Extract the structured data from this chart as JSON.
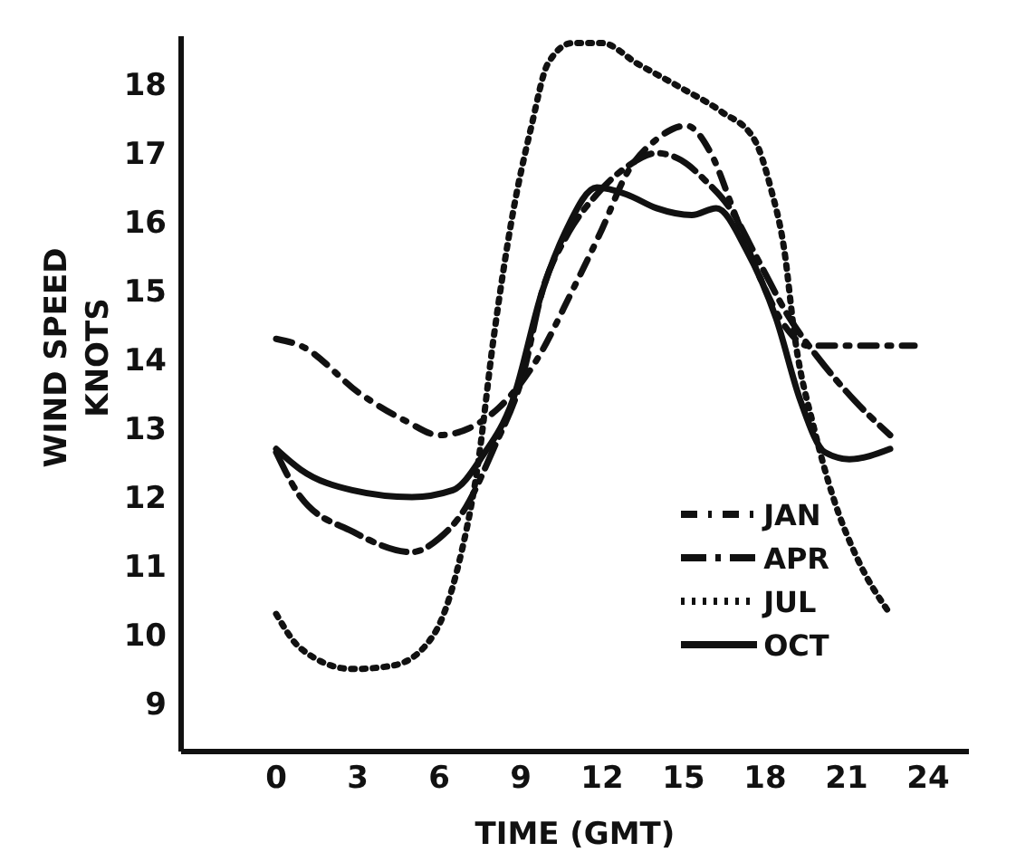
{
  "chart_data": {
    "type": "line",
    "xlabel": "TIME (GMT)",
    "ylabel": "WIND SPEED KNOTS",
    "xlim": [
      -3.5,
      25.5
    ],
    "ylim": [
      8.3,
      18.7
    ],
    "xticks": [
      0,
      3,
      6,
      9,
      12,
      15,
      18,
      21,
      24
    ],
    "yticks": [
      9,
      10,
      11,
      12,
      13,
      14,
      15,
      16,
      17,
      18
    ],
    "grid": false,
    "legend": "bottom right",
    "marker": "none",
    "series": [
      {
        "name": "JAN",
        "color": "#111111",
        "line_style": "dashdot",
        "x": [
          0,
          0.9,
          3.1,
          4.8,
          6,
          7.1,
          8.2,
          9.6,
          10.9,
          12,
          12.9,
          14,
          15.1,
          16,
          16.9,
          17.8,
          18.7,
          19.6,
          20.9,
          23.5
        ],
        "values": [
          14.3,
          14.2,
          13.5,
          13.1,
          12.9,
          13.0,
          13.3,
          14.0,
          15.0,
          15.9,
          16.7,
          17.2,
          17.4,
          17.0,
          16.1,
          15.2,
          14.5,
          14.2,
          14.2,
          14.2
        ]
      },
      {
        "name": "APR",
        "color": "#111111",
        "line_style": "dashed",
        "x": [
          0,
          0.9,
          2.8,
          5,
          6,
          6.9,
          8,
          9.1,
          9.8,
          10.7,
          11.8,
          12.9,
          14,
          14.9,
          15.8,
          16.7,
          17.8,
          18.9,
          20,
          21.3,
          22.6
        ],
        "values": [
          12.65,
          12.0,
          11.5,
          11.2,
          11.4,
          11.8,
          12.7,
          13.8,
          15.0,
          15.8,
          16.4,
          16.8,
          17.0,
          16.9,
          16.6,
          16.2,
          15.4,
          14.6,
          14.0,
          13.4,
          12.9
        ]
      },
      {
        "name": "JUL",
        "color": "#111111",
        "line_style": "dotted",
        "x": [
          0,
          0.9,
          2.8,
          4.3,
          5.8,
          6.7,
          7.4,
          8,
          8.7,
          9.4,
          10,
          10.9,
          12,
          13.3,
          14.9,
          16.4,
          17.6,
          18.2,
          18.7,
          19.1,
          19.8,
          20.5,
          21.4,
          22.6
        ],
        "values": [
          10.3,
          9.8,
          9.5,
          9.55,
          10.0,
          11.0,
          12.4,
          14.3,
          16.1,
          17.4,
          18.3,
          18.6,
          18.6,
          18.3,
          17.95,
          17.6,
          17.2,
          16.5,
          15.6,
          14.3,
          13.0,
          12.0,
          11.1,
          10.3
        ]
      },
      {
        "name": "OCT",
        "color": "#111111",
        "line_style": "solid",
        "x": [
          0,
          0.9,
          2.8,
          5,
          6.5,
          7.6,
          8.7,
          9.8,
          10.7,
          11.8,
          12.9,
          14,
          15.3,
          16.2,
          17.3,
          18.4,
          19.3,
          20.2,
          21.1,
          22.6
        ],
        "values": [
          12.7,
          12.4,
          12.1,
          12.0,
          12.1,
          12.6,
          13.4,
          15.0,
          15.9,
          16.5,
          16.4,
          16.2,
          16.1,
          16.2,
          15.6,
          14.6,
          13.4,
          12.65,
          12.55,
          12.7
        ]
      }
    ]
  }
}
